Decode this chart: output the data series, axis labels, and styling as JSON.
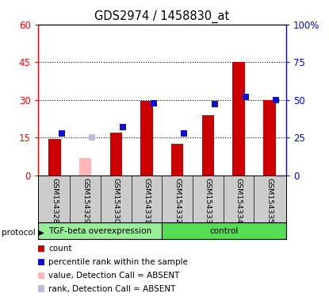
{
  "title": "GDS2974 / 1458830_at",
  "samples": [
    "GSM154328",
    "GSM154329",
    "GSM154330",
    "GSM154331",
    "GSM154332",
    "GSM154333",
    "GSM154334",
    "GSM154335"
  ],
  "count_values": [
    14.5,
    null,
    17.0,
    29.5,
    12.5,
    24.0,
    45.0,
    30.0
  ],
  "count_absent_values": [
    null,
    7.0,
    null,
    null,
    null,
    null,
    null,
    null
  ],
  "rank_values": [
    28.0,
    null,
    32.0,
    48.0,
    28.0,
    47.0,
    52.0,
    50.0
  ],
  "rank_absent_values": [
    null,
    25.0,
    null,
    null,
    null,
    null,
    null,
    null
  ],
  "left_ylim": [
    0,
    60
  ],
  "right_ylim": [
    0,
    100
  ],
  "left_yticks": [
    0,
    15,
    30,
    45,
    60
  ],
  "right_yticks": [
    0,
    25,
    50,
    75,
    100
  ],
  "right_yticklabels": [
    "0",
    "25",
    "50",
    "75",
    "100%"
  ],
  "bar_color_present": "#CC0000",
  "bar_color_absent": "#FFB6B6",
  "rank_color_present": "#1111CC",
  "rank_color_absent": "#BBBBDD",
  "protocol_group1_label": "TGF-beta overexpression",
  "protocol_group2_label": "control",
  "protocol_group1_color": "#99EE99",
  "protocol_group2_color": "#55DD55",
  "legend_items": [
    "count",
    "percentile rank within the sample",
    "value, Detection Call = ABSENT",
    "rank, Detection Call = ABSENT"
  ],
  "legend_colors": [
    "#CC0000",
    "#1111CC",
    "#FFB6B6",
    "#BBBBDD"
  ],
  "gridline_vals": [
    15,
    30,
    45
  ],
  "bar_width": 0.4,
  "rank_marker_size": 6
}
